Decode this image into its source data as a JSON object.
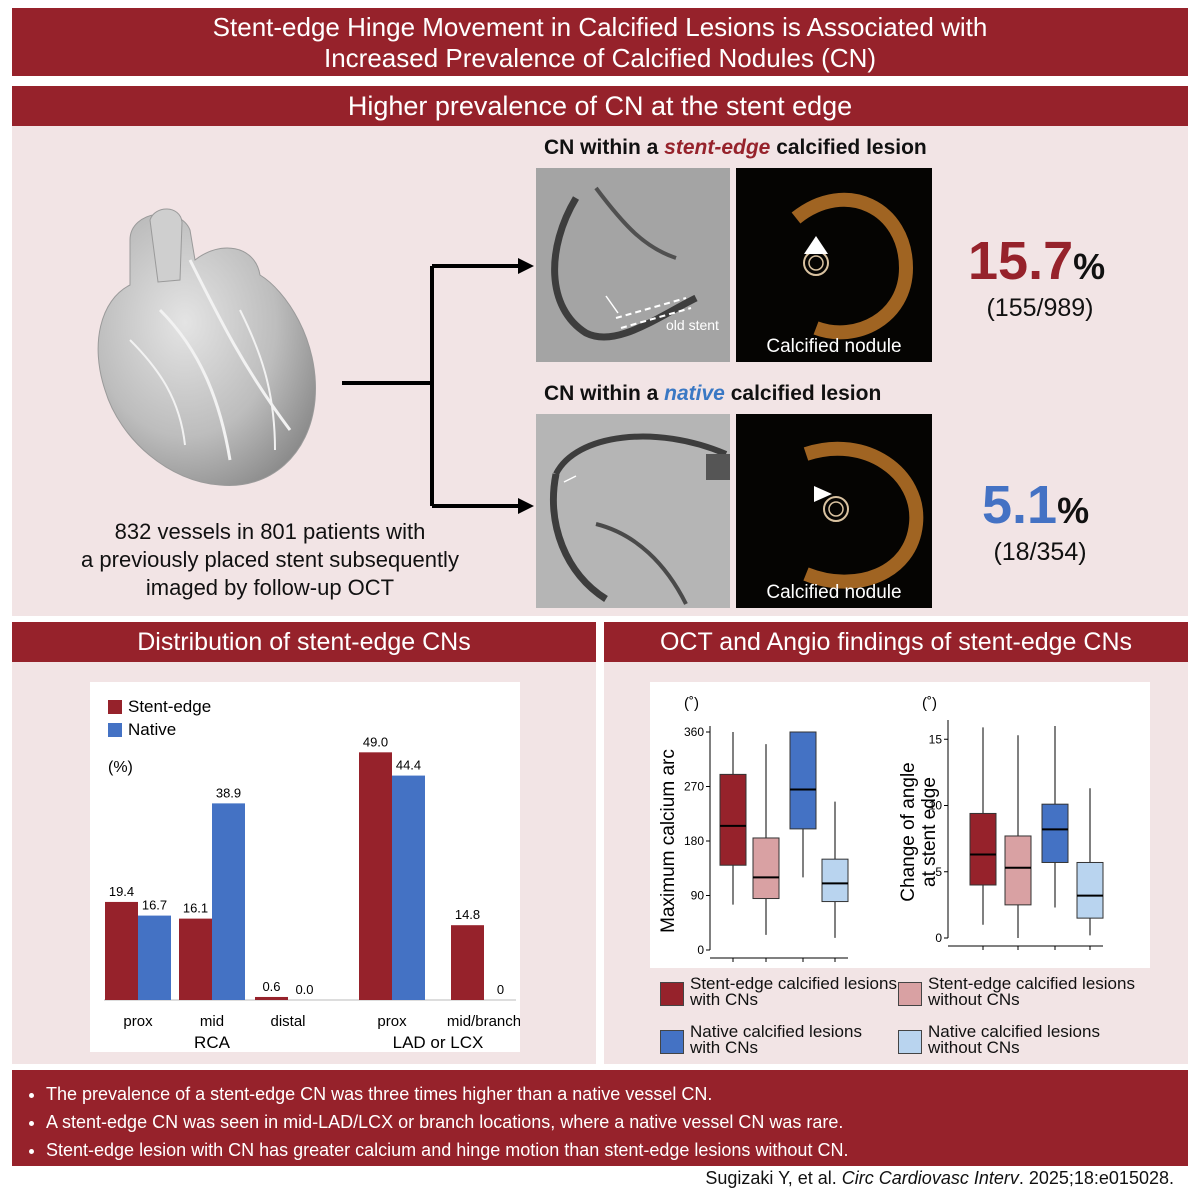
{
  "title": {
    "line1": "Stent-edge Hinge Movement in Calcified Lesions is Associated with",
    "line2": "Increased Prevalence of Calcified Nodules (CN)"
  },
  "section1": {
    "heading": "Higher prevalence of CN at the stent edge",
    "cohort": {
      "line1": "832 vessels in 801 patients with",
      "line2": "a previously placed stent subsequently",
      "line3": "imaged by follow-up OCT"
    },
    "stent_edge": {
      "head_prefix": "CN within a ",
      "head_em": "stent-edge",
      "head_suffix": " calcified lesion",
      "angio_label": "old stent",
      "oct_label": "Calcified nodule",
      "percent": "15.7",
      "unit": "%",
      "fraction": "(155/989)"
    },
    "native": {
      "head_prefix": "CN within a ",
      "head_em": "native",
      "head_suffix": " calcified lesion",
      "oct_label": "Calcified nodule",
      "percent": "5.1",
      "unit": "%",
      "fraction": "(18/354)"
    }
  },
  "section2": {
    "heading": "Distribution of stent-edge CNs"
  },
  "section3": {
    "heading": "OCT and Angio findings of stent-edge CNs"
  },
  "colors": {
    "red": "#96222b",
    "blue": "#4472c4",
    "light_red": "#d9a1a3",
    "light_blue": "#b9d4ef"
  },
  "chart_data": [
    {
      "type": "bar",
      "title": "Distribution of stent-edge CNs",
      "ylabel": "(%)",
      "ylim": [
        0,
        55
      ],
      "categories": [
        "prox",
        "mid",
        "distal",
        "prox",
        "mid/branch"
      ],
      "groups": [
        {
          "label": "RCA",
          "categories": [
            "prox",
            "mid",
            "distal"
          ]
        },
        {
          "label": "LAD or LCX",
          "categories": [
            "prox",
            "mid/branch"
          ]
        }
      ],
      "series": [
        {
          "name": "Stent-edge",
          "values": [
            19.4,
            16.1,
            0.6,
            49.0,
            14.8
          ],
          "labels": [
            "19.4",
            "16.1",
            "0.6",
            "49.0",
            "14.8"
          ]
        },
        {
          "name": "Native",
          "values": [
            16.7,
            38.9,
            0.0,
            44.4,
            0
          ],
          "labels": [
            "16.7",
            "38.9",
            "0.0",
            "44.4",
            "0"
          ]
        }
      ]
    },
    {
      "type": "box",
      "ylabel": "Maximum calcium arc",
      "unit_label": "(˚)",
      "ylim": [
        0,
        360
      ],
      "yticks": [
        "0",
        "90",
        "180",
        "270",
        "360"
      ],
      "boxes": [
        {
          "name": "Stent-edge calcified lesions with CNs",
          "min": 75,
          "q1": 140,
          "median": 205,
          "q3": 290,
          "max": 360
        },
        {
          "name": "Stent-edge calcified lesions without CNs",
          "min": 25,
          "q1": 85,
          "median": 120,
          "q3": 185,
          "max": 340
        },
        {
          "name": "Native calcified lesions with CNs",
          "min": 120,
          "q1": 200,
          "median": 265,
          "q3": 360,
          "max": 360
        },
        {
          "name": "Native calcified lesions without CNs",
          "min": 20,
          "q1": 80,
          "median": 110,
          "q3": 150,
          "max": 245
        }
      ]
    },
    {
      "type": "box",
      "ylabel": "Change of angle at stent edge",
      "unit_label": "(˚)",
      "ylim": [
        0,
        16
      ],
      "yticks": [
        "0",
        "5",
        "10",
        "15"
      ],
      "boxes": [
        {
          "name": "Stent-edge calcified lesions with CNs",
          "min": 1,
          "q1": 4,
          "median": 6.3,
          "q3": 9.4,
          "max": 15.9
        },
        {
          "name": "Stent-edge calcified lesions without CNs",
          "min": 0,
          "q1": 2.5,
          "median": 5.3,
          "q3": 7.7,
          "max": 15.3
        },
        {
          "name": "Native calcified lesions with CNs",
          "min": 2.3,
          "q1": 5.7,
          "median": 8.2,
          "q3": 10.1,
          "max": 16
        },
        {
          "name": "Native calcified lesions without CNs",
          "min": 0.2,
          "q1": 1.5,
          "median": 3.2,
          "q3": 5.7,
          "max": 11.3
        }
      ]
    }
  ],
  "box_legend": [
    {
      "line1": "Stent-edge calcified lesions",
      "line2": "with CNs"
    },
    {
      "line1": "Stent-edge calcified lesions",
      "line2": "without CNs"
    },
    {
      "line1": "Native calcified lesions",
      "line2": "with CNs"
    },
    {
      "line1": "Native calcified lesions",
      "line2": "without CNs"
    }
  ],
  "bullets": [
    "The prevalence of a stent-edge CN was three times higher than a native vessel CN.",
    "A stent-edge CN was seen in mid-LAD/LCX or branch locations, where a native vessel CN was rare.",
    "Stent-edge lesion with CN has greater calcium and hinge motion than stent-edge lesions without CN."
  ],
  "citation": {
    "authors": "Sugizaki Y, et al. ",
    "journal": "Circ Cardiovasc Interv",
    "details": ". 2025;18:e015028."
  }
}
